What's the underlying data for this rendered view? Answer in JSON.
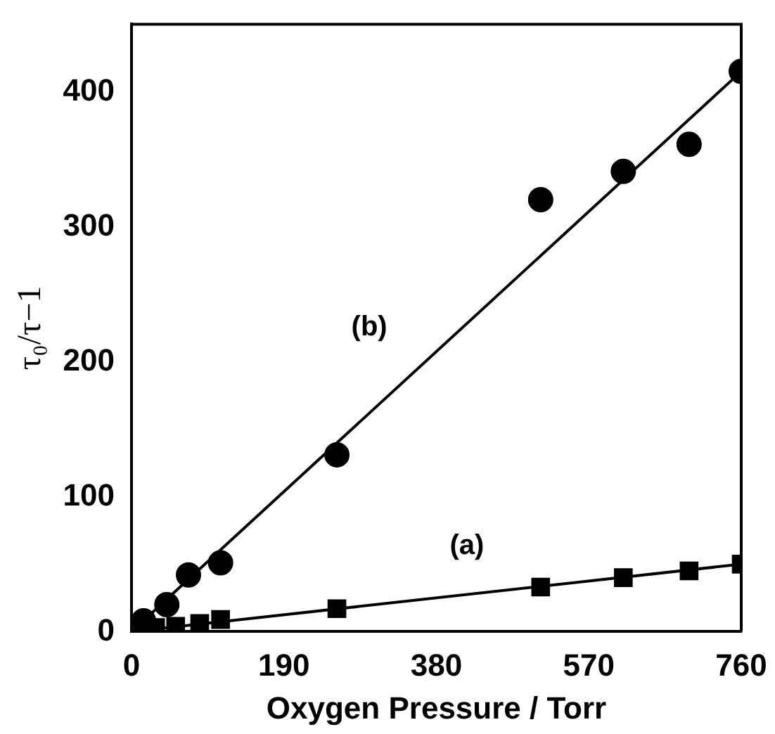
{
  "chart_data": {
    "type": "scatter",
    "xlabel": "Oxygen Pressure / Torr",
    "ylabel": "τ₀/τ−1",
    "xlim": [
      0,
      760
    ],
    "ylim": [
      0,
      450
    ],
    "xticks": [
      0,
      190,
      380,
      570,
      760
    ],
    "yticks": [
      0,
      100,
      200,
      300,
      400
    ],
    "grid": false,
    "legend": false,
    "series": [
      {
        "color": "#000000",
        "marker": "circle",
        "x": [
          15,
          44,
          71,
          111,
          256,
          510,
          613,
          695,
          760
        ],
        "values": [
          8,
          20,
          42,
          51,
          131,
          320,
          341,
          361,
          415
        ]
      },
      {
        "color": "#000000",
        "marker": "square",
        "x": [
          30,
          55,
          85,
          111,
          256,
          510,
          613,
          695,
          760
        ],
        "values": [
          3,
          4,
          6,
          9,
          17,
          33,
          40,
          45,
          50
        ]
      },
      {
        "type": "line",
        "color": "#000000",
        "marker": "none",
        "x": [
          0,
          760
        ],
        "values": [
          0,
          415
        ]
      },
      {
        "type": "line",
        "color": "#000000",
        "marker": "none",
        "x": [
          0,
          760
        ],
        "values": [
          0,
          50
        ]
      }
    ],
    "annotations": [
      "(b)",
      "(a)"
    ]
  }
}
